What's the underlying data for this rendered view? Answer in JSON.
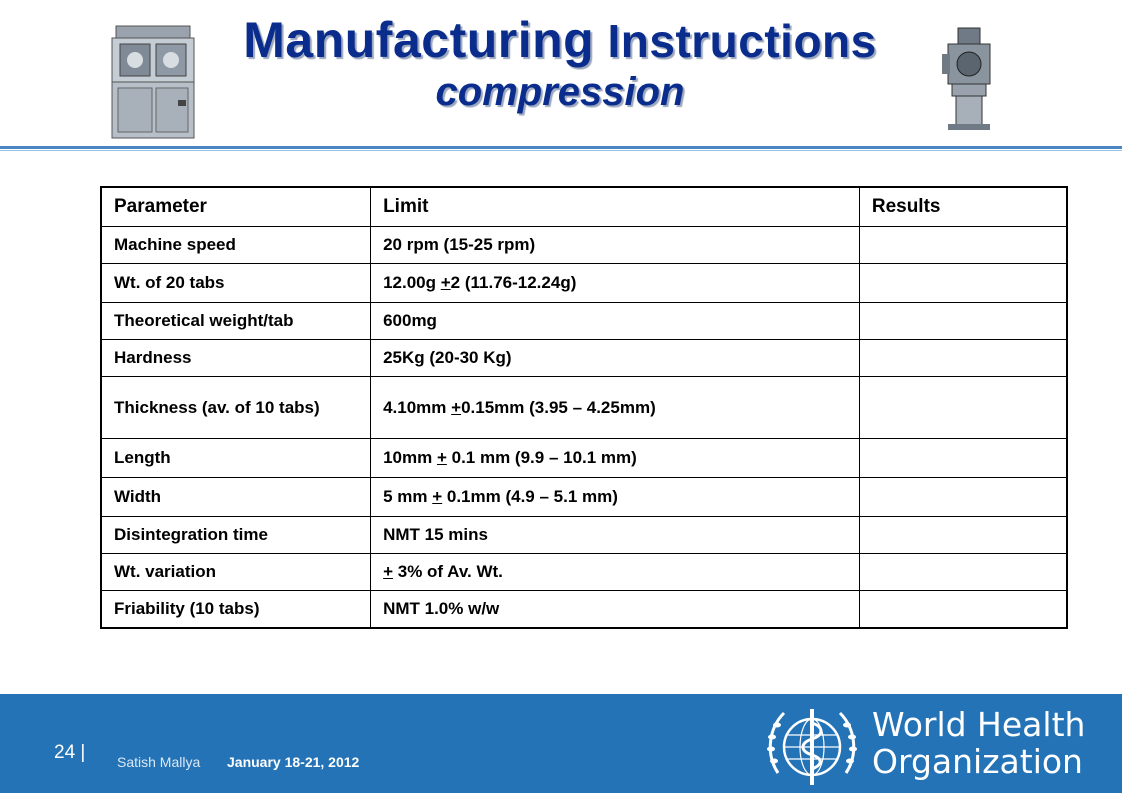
{
  "slide": {
    "title_word": "Manufacturing",
    "title_rest": "Instructions",
    "subtitle": "compression"
  },
  "table": {
    "headers": [
      "Parameter",
      "Limit",
      "Results"
    ],
    "rows": [
      {
        "parameter": "Machine speed",
        "limit": "20 rpm (15-25 rpm)",
        "result": ""
      },
      {
        "parameter": "Wt. of 20 tabs",
        "limit_pre": "12.00g ",
        "limit_pm": "+",
        "limit_post": "2 (11.76-12.24g)",
        "result": ""
      },
      {
        "parameter": "Theoretical weight/tab",
        "limit": "600mg",
        "result": ""
      },
      {
        "parameter": "Hardness",
        "limit": "25Kg (20-30 Kg)",
        "result": ""
      },
      {
        "parameter": "Thickness (av. of 10 tabs)",
        "limit_pre": "4.10mm ",
        "limit_pm": "+",
        "limit_post": "0.15mm (3.95 – 4.25mm)",
        "result": ""
      },
      {
        "parameter": "Length",
        "limit_pre": "10mm ",
        "limit_pm": "+",
        "limit_post": " 0.1 mm (9.9 – 10.1 mm)",
        "result": ""
      },
      {
        "parameter": "Width",
        "limit_pre": "5 mm ",
        "limit_pm": "+",
        "limit_post": " 0.1mm (4.9 – 5.1 mm)",
        "result": ""
      },
      {
        "parameter": "Disintegration time",
        "limit": "NMT 15 mins",
        "result": ""
      },
      {
        "parameter": "Wt. variation",
        "limit_pre": "",
        "limit_pm": "+",
        "limit_post": " 3% of Av. Wt.",
        "result": ""
      },
      {
        "parameter": "Friability (10 tabs)",
        "limit": "NMT 1.0% w/w",
        "result": ""
      }
    ]
  },
  "footer": {
    "page_number": "24 |",
    "author": "Satish Mallya",
    "date": "January 18-21, 2012",
    "org_line1": "World Health",
    "org_line2": "Organization"
  },
  "colors": {
    "title": "#0a2c8c",
    "footer_bg": "#2473b6",
    "rule": "#4a86c5"
  },
  "icons": [
    "tablet-press-machine-icon",
    "rotary-press-machine-icon",
    "who-emblem-icon"
  ]
}
